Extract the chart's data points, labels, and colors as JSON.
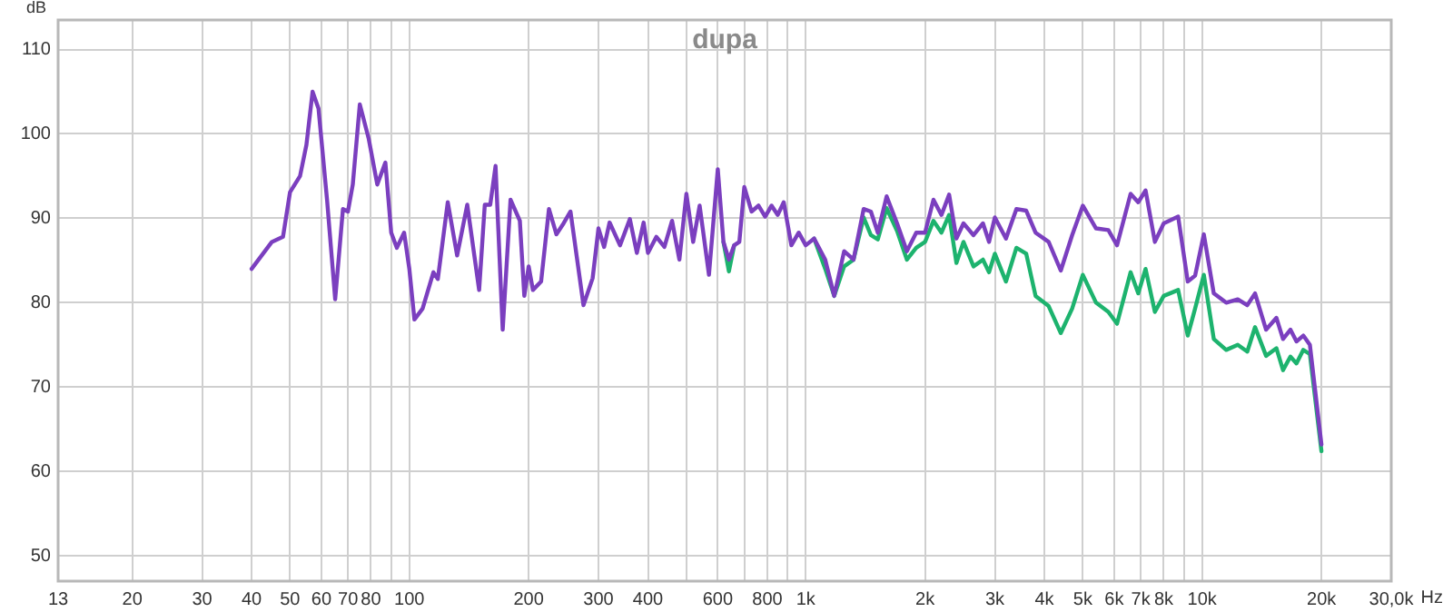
{
  "chart_data": {
    "type": "line",
    "title": "dupa",
    "ylabel": "dB",
    "xlabel": "Hz",
    "log": "x",
    "grid": true,
    "legend": false,
    "marker": "none",
    "line_style": "solid",
    "x": [
      40,
      45,
      48,
      50,
      53,
      55,
      57,
      59,
      62,
      65,
      68,
      70,
      72,
      75,
      79,
      83,
      87,
      90,
      93,
      97,
      100,
      103,
      108,
      115,
      118,
      125,
      132,
      140,
      150,
      155,
      160,
      165,
      172,
      180,
      190,
      195,
      200,
      205,
      215,
      225,
      235,
      245,
      255,
      275,
      290,
      300,
      310,
      320,
      340,
      360,
      375,
      390,
      400,
      420,
      440,
      460,
      480,
      500,
      520,
      540,
      570,
      600,
      620,
      640,
      660,
      680,
      700,
      730,
      760,
      790,
      820,
      850,
      880,
      920,
      960,
      1000,
      1050,
      1120,
      1180,
      1250,
      1320,
      1400,
      1460,
      1520,
      1600,
      1700,
      1800,
      1900,
      2000,
      2100,
      2200,
      2300,
      2400,
      2500,
      2650,
      2800,
      2900,
      3000,
      3200,
      3400,
      3600,
      3800,
      4100,
      4400,
      4700,
      5000,
      5400,
      5800,
      6100,
      6600,
      6900,
      7200,
      7600,
      8000,
      8700,
      9200,
      9600,
      10100,
      10700,
      11500,
      12300,
      13000,
      13600,
      14500,
      15400,
      16000,
      16700,
      17300,
      18000,
      18700,
      20000
    ],
    "series": [
      {
        "color": "#1db36e",
        "values": [
          null,
          null,
          null,
          null,
          null,
          null,
          null,
          null,
          null,
          null,
          null,
          null,
          null,
          null,
          null,
          null,
          null,
          null,
          null,
          null,
          null,
          null,
          null,
          null,
          null,
          null,
          null,
          null,
          null,
          null,
          null,
          null,
          null,
          null,
          null,
          null,
          null,
          null,
          null,
          null,
          null,
          null,
          null,
          null,
          null,
          null,
          null,
          null,
          null,
          null,
          null,
          null,
          null,
          null,
          null,
          null,
          null,
          null,
          null,
          null,
          null,
          null,
          87.2,
          83.7,
          86.8,
          null,
          null,
          null,
          null,
          null,
          null,
          null,
          null,
          null,
          null,
          null,
          87.6,
          84,
          80.8,
          84.3,
          85.1,
          90.1,
          88,
          87.5,
          91.2,
          88.5,
          85.1,
          86.5,
          87.2,
          89.7,
          88.3,
          90.4,
          84.7,
          87.2,
          84.3,
          85.1,
          83.6,
          85.8,
          82.5,
          86.5,
          85.8,
          80.8,
          79.6,
          76.4,
          79.3,
          83.3,
          80,
          78.9,
          77.5,
          83.6,
          81.1,
          84,
          78.9,
          80.8,
          81.5,
          76.1,
          79.3,
          83.3,
          75.7,
          74.4,
          75,
          74.2,
          77.1,
          73.7,
          74.6,
          72,
          73.6,
          72.8,
          74.4,
          73.9,
          62.4
        ]
      },
      {
        "color": "#7b3fbf",
        "values": [
          84,
          87.2,
          87.8,
          93.1,
          95,
          98.7,
          105,
          103,
          92.2,
          80.4,
          91.1,
          90.8,
          94,
          103.5,
          99.4,
          94,
          96.6,
          88.3,
          86.5,
          88.3,
          84,
          78,
          79.3,
          83.6,
          82.8,
          91.9,
          85.6,
          91.6,
          81.5,
          91.6,
          91.6,
          96.2,
          76.8,
          92.2,
          89.7,
          80.8,
          84.3,
          81.5,
          82.5,
          91.1,
          88.1,
          89.4,
          90.8,
          79.7,
          82.9,
          88.8,
          86.6,
          89.5,
          86.8,
          89.9,
          85.9,
          89.5,
          85.9,
          87.8,
          86.6,
          89.7,
          85.1,
          92.9,
          87.2,
          91.5,
          83.3,
          95.8,
          87.2,
          85.1,
          86.8,
          87.2,
          93.7,
          90.8,
          91.5,
          90.2,
          91.5,
          90.4,
          91.9,
          86.8,
          88.3,
          86.8,
          87.6,
          85.1,
          80.8,
          86.1,
          85.1,
          91.1,
          90.8,
          88.3,
          92.6,
          89.4,
          86.1,
          88.3,
          88.3,
          92.2,
          90.4,
          92.8,
          87.6,
          89.4,
          88,
          89.4,
          87.2,
          90.1,
          87.6,
          91.1,
          90.9,
          88.3,
          87.2,
          83.8,
          88,
          91.5,
          88.8,
          88.6,
          86.8,
          92.9,
          91.9,
          93.3,
          87.2,
          89.4,
          90.2,
          82.5,
          83.2,
          88.1,
          81.1,
          80,
          80.4,
          79.7,
          81.1,
          76.8,
          78.2,
          75.7,
          76.8,
          75.4,
          76.1,
          75,
          63.2
        ]
      }
    ],
    "xlim": [
      13,
      30000
    ],
    "xticks": [
      13,
      20,
      30,
      40,
      50,
      60,
      70,
      80,
      {
        "value": 90,
        "label": null
      },
      100,
      200,
      300,
      400,
      {
        "value": 500,
        "label": null
      },
      600,
      {
        "value": 700,
        "label": null
      },
      800,
      {
        "value": 900,
        "label": null
      },
      {
        "value": 1000,
        "label": "1k"
      },
      {
        "value": 2000,
        "label": "2k"
      },
      {
        "value": 3000,
        "label": "3k"
      },
      {
        "value": 4000,
        "label": "4k"
      },
      {
        "value": 5000,
        "label": "5k"
      },
      {
        "value": 6000,
        "label": "6k"
      },
      {
        "value": 7000,
        "label": "7k"
      },
      {
        "value": 8000,
        "label": "8k"
      },
      {
        "value": 9000,
        "label": null
      },
      {
        "value": 10000,
        "label": "10k"
      },
      {
        "value": 20000,
        "label": "20k"
      },
      {
        "value": 30000,
        "label": "30,0k"
      }
    ],
    "ylim": [
      47,
      113.5
    ],
    "yticks": [
      50,
      60,
      70,
      80,
      90,
      100,
      110
    ]
  }
}
